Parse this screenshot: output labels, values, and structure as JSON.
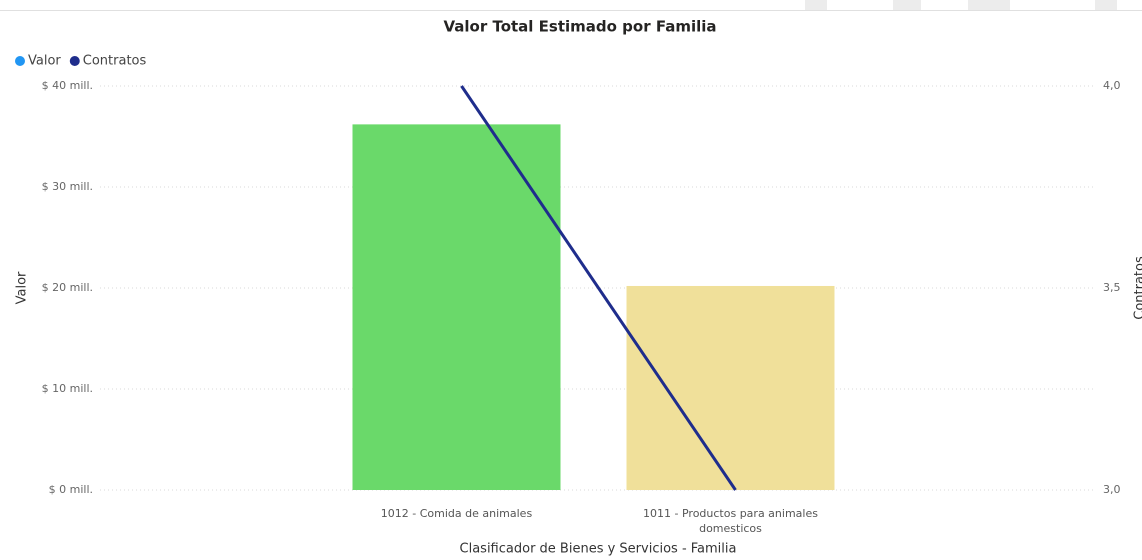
{
  "chart_data": {
    "type": "bar-line",
    "title": "Valor Total Estimado por Familia",
    "x_label": "Clasificador de Bienes y Servicios - Familia",
    "y_label": "Valor",
    "y2_label": "Contratos",
    "categories": [
      "1012 - Comida de animales",
      "1011 - Productos para animales domesticos"
    ],
    "series": [
      {
        "name": "Valor",
        "type": "bar",
        "color": "#2196f3",
        "colors": [
          "#6ad96a",
          "#f0e09a"
        ],
        "values": [
          36200000,
          20200000
        ]
      },
      {
        "name": "Contratos",
        "type": "line",
        "axis": "y2",
        "color": "#1f2d8c",
        "values": [
          4,
          3
        ]
      }
    ],
    "ylim": [
      0,
      40000000
    ],
    "yticks": [
      {
        "value": 0,
        "label": "$ 0 mill."
      },
      {
        "value": 10000000,
        "label": "$ 10 mill."
      },
      {
        "value": 20000000,
        "label": "$ 20 mill."
      },
      {
        "value": 30000000,
        "label": "$ 30 mill."
      },
      {
        "value": 40000000,
        "label": "$ 40 mill."
      }
    ],
    "y2lim": [
      3,
      4
    ],
    "y2ticks": [
      {
        "value": 3,
        "label": "3,0"
      },
      {
        "value": 3.5,
        "label": "3,5"
      },
      {
        "value": 4,
        "label": "4,0"
      }
    ],
    "grid": true,
    "legend": "top-left"
  }
}
